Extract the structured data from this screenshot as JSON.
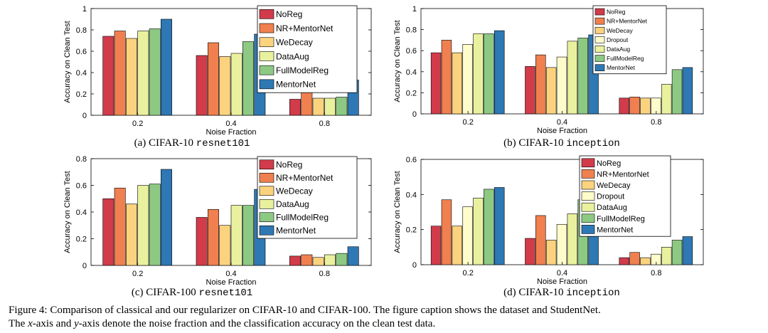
{
  "colors": {
    "NoReg": "#d13b4a",
    "NR+MentorNet": "#f08050",
    "WeDecay": "#fbd37f",
    "Dropout": "#fffccb",
    "DataAug": "#e9f19e",
    "FullModelReg": "#8dc983",
    "MentorNet": "#2e78b4"
  },
  "chart_data": [
    {
      "type": "bar",
      "caption_prefix": "(a) CIFAR-10",
      "caption_net": "resnet101",
      "xlabel": "Noise Fraction",
      "ylabel": "Accuracy on Clean Test",
      "categories": [
        "0.2",
        "0.4",
        "0.8"
      ],
      "ylim": [
        0,
        1
      ],
      "yticks": [
        "0",
        "0.2",
        "0.4",
        "0.6",
        "0.8",
        "1"
      ],
      "legend_position": "top-right",
      "series": [
        {
          "name": "NoReg",
          "values": [
            0.74,
            0.56,
            0.15
          ]
        },
        {
          "name": "NR+MentorNet",
          "values": [
            0.79,
            0.68,
            0.25
          ]
        },
        {
          "name": "WeDecay",
          "values": [
            0.72,
            0.55,
            0.16
          ]
        },
        {
          "name": "DataAug",
          "values": [
            0.79,
            0.58,
            0.16
          ]
        },
        {
          "name": "FullModelReg",
          "values": [
            0.81,
            0.69,
            0.17
          ]
        },
        {
          "name": "MentorNet",
          "values": [
            0.9,
            0.76,
            0.33
          ]
        }
      ]
    },
    {
      "type": "bar",
      "caption_prefix": "(b) CIFAR-10",
      "caption_net": "inception",
      "xlabel": "Noise Fraction",
      "ylabel": "Accuracy on Clean Test",
      "categories": [
        "0.2",
        "0.4",
        "0.8"
      ],
      "ylim": [
        0,
        1
      ],
      "yticks": [
        "0",
        "0.2",
        "0.4",
        "0.6",
        "0.8",
        "1"
      ],
      "legend_position": "top-right",
      "series": [
        {
          "name": "NoReg",
          "values": [
            0.58,
            0.45,
            0.15
          ]
        },
        {
          "name": "NR+MentorNet",
          "values": [
            0.7,
            0.56,
            0.16
          ]
        },
        {
          "name": "WeDecay",
          "values": [
            0.58,
            0.44,
            0.15
          ]
        },
        {
          "name": "Dropout",
          "values": [
            0.66,
            0.54,
            0.15
          ]
        },
        {
          "name": "DataAug",
          "values": [
            0.76,
            0.69,
            0.28
          ]
        },
        {
          "name": "FullModelReg",
          "values": [
            0.76,
            0.72,
            0.42
          ]
        },
        {
          "name": "MentorNet",
          "values": [
            0.79,
            0.75,
            0.44
          ]
        }
      ]
    },
    {
      "type": "bar",
      "caption_prefix": "(c) CIFAR-100",
      "caption_net": "resnet101",
      "xlabel": "Noise Fraction",
      "ylabel": "Accuracy on Clean Test",
      "categories": [
        "0.2",
        "0.4",
        "0.8"
      ],
      "ylim": [
        0,
        0.8
      ],
      "yticks": [
        "0",
        "0.2",
        "0.4",
        "0.6",
        "0.8"
      ],
      "legend_position": "top-right",
      "series": [
        {
          "name": "NoReg",
          "values": [
            0.5,
            0.36,
            0.07
          ]
        },
        {
          "name": "NR+MentorNet",
          "values": [
            0.58,
            0.42,
            0.08
          ]
        },
        {
          "name": "WeDecay",
          "values": [
            0.46,
            0.3,
            0.06
          ]
        },
        {
          "name": "DataAug",
          "values": [
            0.6,
            0.45,
            0.08
          ]
        },
        {
          "name": "FullModelReg",
          "values": [
            0.61,
            0.45,
            0.09
          ]
        },
        {
          "name": "MentorNet",
          "values": [
            0.72,
            0.57,
            0.14
          ]
        }
      ]
    },
    {
      "type": "bar",
      "caption_prefix": "(d) CIFAR-10",
      "caption_net": "inception",
      "xlabel": "Noise Fraction",
      "ylabel": "Accuracy on Clean Test",
      "categories": [
        "0.2",
        "0.4",
        "0.8"
      ],
      "ylim": [
        0,
        0.6
      ],
      "yticks": [
        "0",
        "0.2",
        "0.4",
        "0.6"
      ],
      "legend_position": "top-right",
      "series": [
        {
          "name": "NoReg",
          "values": [
            0.22,
            0.15,
            0.04
          ]
        },
        {
          "name": "NR+MentorNet",
          "values": [
            0.37,
            0.28,
            0.07
          ]
        },
        {
          "name": "WeDecay",
          "values": [
            0.22,
            0.14,
            0.04
          ]
        },
        {
          "name": "Dropout",
          "values": [
            0.33,
            0.23,
            0.06
          ]
        },
        {
          "name": "DataAug",
          "values": [
            0.38,
            0.29,
            0.1
          ]
        },
        {
          "name": "FullModelReg",
          "values": [
            0.43,
            0.37,
            0.14
          ]
        },
        {
          "name": "MentorNet",
          "values": [
            0.44,
            0.39,
            0.16
          ]
        }
      ]
    }
  ],
  "caption": {
    "line1": "Figure 4: Comparison of classical and our regularizer on CIFAR-10 and CIFAR-100. The figure caption shows the dataset and StudentNet.",
    "line2_pre": "The ",
    "line2_x": "x",
    "line2_mid": "-axis and ",
    "line2_y": "y",
    "line2_post": "-axis denote the noise fraction and the classification accuracy on the clean test data."
  }
}
